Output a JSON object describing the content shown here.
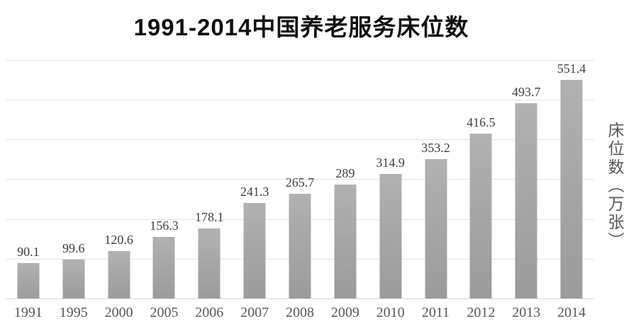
{
  "chart": {
    "title": "1991-2014中国养老服务床位数",
    "y_axis_label": "床位数（万张）"
  },
  "chart_data": {
    "type": "bar",
    "title": "1991-2014中国养老服务床位数",
    "categories": [
      "1991",
      "1995",
      "2000",
      "2005",
      "2006",
      "2007",
      "2008",
      "2009",
      "2010",
      "2011",
      "2012",
      "2013",
      "2014"
    ],
    "values": [
      90.1,
      99.6,
      120.6,
      156.3,
      178.1,
      241.3,
      265.7,
      289,
      314.9,
      353.2,
      416.5,
      493.7,
      551.4
    ],
    "value_labels": [
      "90.1",
      "99.6",
      "120.6",
      "156.3",
      "178.1",
      "241.3",
      "265.7",
      "289",
      "314.9",
      "353.2",
      "416.5",
      "493.7",
      "551.4"
    ],
    "xlabel": "",
    "ylabel": "床位数（万张）",
    "ylim": [
      0,
      600
    ],
    "gridline_step": 100,
    "grid": true,
    "legend": "none",
    "bar_color": "#a3a3a3",
    "gridline_color": "#e3e3e3",
    "value_label_color": "#404040",
    "tick_label_color": "#595959",
    "title_color": "#111111"
  }
}
